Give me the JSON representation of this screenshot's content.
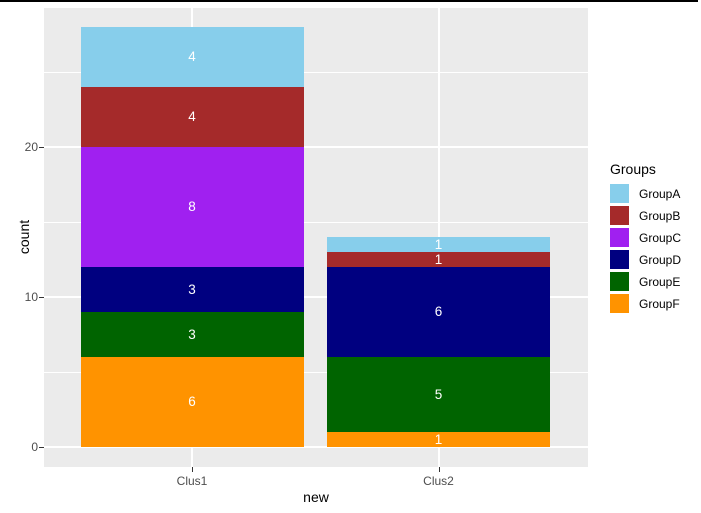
{
  "chart_data": {
    "type": "bar",
    "stacked": true,
    "orientation": "vertical",
    "title": "",
    "xlabel": "new",
    "ylabel": "count",
    "categories": [
      "Clus1",
      "Clus2"
    ],
    "series": [
      {
        "name": "GroupA",
        "color": "#87CEEB",
        "values": [
          4,
          1
        ]
      },
      {
        "name": "GroupB",
        "color": "#A52A2A",
        "values": [
          4,
          1
        ]
      },
      {
        "name": "GroupC",
        "color": "#A020F0",
        "values": [
          8,
          0
        ]
      },
      {
        "name": "GroupD",
        "color": "#000080",
        "values": [
          3,
          6
        ]
      },
      {
        "name": "GroupE",
        "color": "#006400",
        "values": [
          3,
          5
        ]
      },
      {
        "name": "GroupF",
        "color": "#FF9300",
        "values": [
          6,
          1
        ]
      }
    ],
    "stack_order_bottom_to_top": [
      "GroupF",
      "GroupE",
      "GroupD",
      "GroupC",
      "GroupB",
      "GroupA"
    ],
    "totals": [
      28,
      14
    ],
    "bar_value_labels_shown": true,
    "legend_title": "Groups",
    "legend_position": "right",
    "y_major_ticks": [
      0,
      10,
      20
    ],
    "y_minor_gridlines": [
      5,
      15,
      25
    ],
    "ylim": [
      -1.4,
      29.4
    ],
    "grid": true
  },
  "style_colors": {
    "panel_background": "#EBEBEB",
    "gridline": "#FFFFFF",
    "tick_text": "#4D4D4D",
    "axis_title_text": "#000000",
    "bar_label_text": "#FFFFFF",
    "window_border_top": "#000000"
  }
}
